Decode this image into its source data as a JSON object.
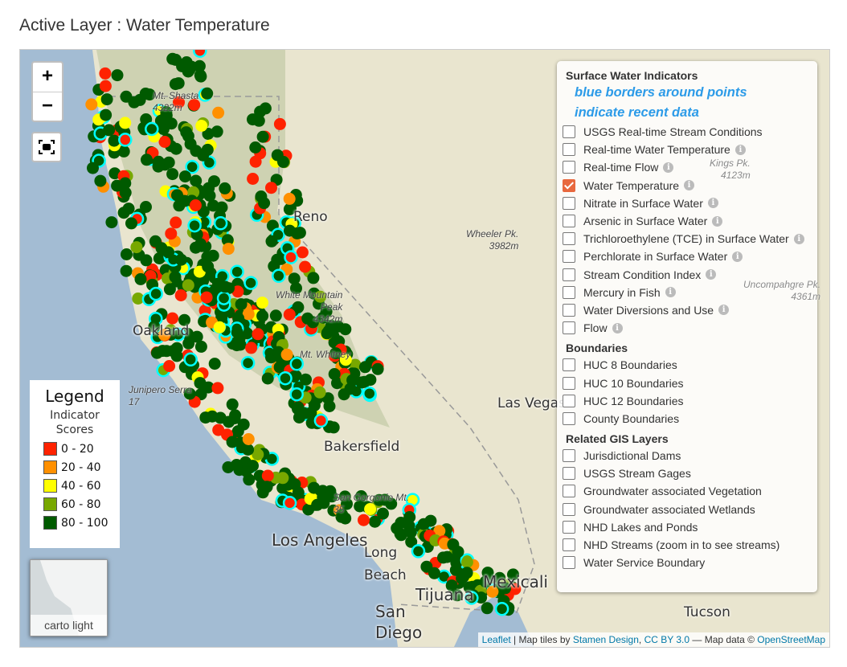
{
  "page_title": "Active Layer : Water Temperature",
  "map": {
    "zoom_in": "+",
    "zoom_out": "−",
    "fit_icon": "fullscreen-icon",
    "places": [
      "Reno",
      "Oakland",
      "Bakersfield",
      "Las Vegas",
      "Los Angeles",
      "San Diego",
      "Tijuana",
      "Mexicali",
      "Tucson",
      "Long Beach"
    ],
    "peaks": [
      "Wheeler Pk.\n3982m",
      "White Mountain\nPeak\n4342m",
      "Mt. Whitney",
      "Kings Pk.\n4123m",
      "Uncompahgre Pk.\n4361m",
      "Junipero Serra\n17",
      "San Gorgonio Mt.\n35",
      "Mt. Shasta\n4322m"
    ],
    "colors": {
      "ocean": "#a3bcd3",
      "land": "#e9e5cf",
      "recent_border": "#00ffff"
    }
  },
  "legend": {
    "title": "Legend",
    "subtitle": "Indicator Scores",
    "items": [
      {
        "label": "0 - 20",
        "color": "#ff2200"
      },
      {
        "label": "20 - 40",
        "color": "#ff9000"
      },
      {
        "label": "40 - 60",
        "color": "#ffff00"
      },
      {
        "label": "60 - 80",
        "color": "#78a800"
      },
      {
        "label": "80 - 100",
        "color": "#005a00"
      }
    ]
  },
  "basemap": {
    "label": "carto light"
  },
  "layers": {
    "surface_header": "Surface Water Indicators",
    "note_line1": "blue borders around points",
    "note_line2": "indicate recent data",
    "surface": [
      {
        "label": "USGS Real-time Stream Conditions",
        "checked": false,
        "info": false
      },
      {
        "label": "Real-time Water Temperature",
        "checked": false,
        "info": true
      },
      {
        "label": "Real-time Flow",
        "checked": false,
        "info": true
      },
      {
        "label": "Water Temperature",
        "checked": true,
        "info": true
      },
      {
        "label": "Nitrate in Surface Water",
        "checked": false,
        "info": true
      },
      {
        "label": "Arsenic in Surface Water",
        "checked": false,
        "info": true
      },
      {
        "label": "Trichloroethylene (TCE) in Surface Water",
        "checked": false,
        "info": true
      },
      {
        "label": "Perchlorate in Surface Water",
        "checked": false,
        "info": true
      },
      {
        "label": "Stream Condition Index",
        "checked": false,
        "info": true
      },
      {
        "label": "Mercury in Fish",
        "checked": false,
        "info": true
      },
      {
        "label": "Water Diversions and Use",
        "checked": false,
        "info": true
      },
      {
        "label": "Flow",
        "checked": false,
        "info": true
      }
    ],
    "boundaries_header": "Boundaries",
    "boundaries": [
      {
        "label": "HUC 8 Boundaries",
        "checked": false
      },
      {
        "label": "HUC 10 Boundaries",
        "checked": false
      },
      {
        "label": "HUC 12 Boundaries",
        "checked": false
      },
      {
        "label": "County Boundaries",
        "checked": false
      }
    ],
    "gis_header": "Related GIS Layers",
    "gis": [
      {
        "label": "Jurisdictional Dams",
        "checked": false
      },
      {
        "label": "USGS Stream Gages",
        "checked": false
      },
      {
        "label": "Groundwater associated Vegetation",
        "checked": false
      },
      {
        "label": "Groundwater associated Wetlands",
        "checked": false
      },
      {
        "label": "NHD Lakes and Ponds",
        "checked": false
      },
      {
        "label": "NHD Streams (zoom in to see streams)",
        "checked": false
      },
      {
        "label": "Water Service Boundary",
        "checked": false
      }
    ]
  },
  "attribution": {
    "leaflet": "Leaflet",
    "sep": " | Map tiles by ",
    "stamen": "Stamen Design",
    "comma": ", ",
    "cc": "CC BY 3.0",
    "mapdata": " — Map data © ",
    "osm": "OpenStreetMap"
  }
}
